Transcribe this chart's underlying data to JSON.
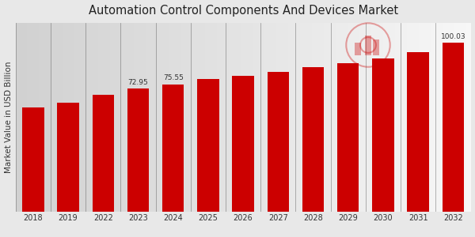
{
  "title": "Automation Control Components And Devices Market",
  "ylabel": "Market Value in USD Billion",
  "categories": [
    "2018",
    "2019",
    "2022",
    "2023",
    "2024",
    "2025",
    "2026",
    "2027",
    "2028",
    "2029",
    "2030",
    "2031",
    "2032"
  ],
  "values": [
    62.0,
    64.5,
    69.5,
    72.95,
    75.55,
    78.5,
    80.5,
    83.0,
    85.5,
    88.0,
    91.0,
    94.5,
    100.03
  ],
  "bar_color": "#CC0000",
  "bg_left": "#d8d8d8",
  "bg_right": "#f5f5f5",
  "label_values": {
    "2023": "72.95",
    "2024": "75.55",
    "2032": "100.03"
  },
  "ylim": [
    0,
    112
  ],
  "title_fontsize": 10.5,
  "tick_fontsize": 7,
  "ylabel_fontsize": 7.5,
  "bottom_bar_color": "#CC0000",
  "grid_color": "#555555"
}
